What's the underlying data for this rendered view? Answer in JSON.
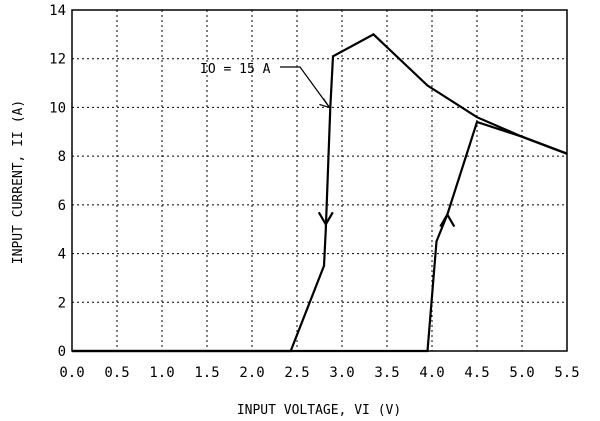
{
  "chart_data": {
    "type": "line",
    "title": "",
    "xlabel": "INPUT VOLTAGE, VI (V)",
    "ylabel": "INPUT CURRENT, II (A)",
    "xlim": [
      0,
      5.5
    ],
    "ylim": [
      0,
      14
    ],
    "x_ticks": [
      "0.0",
      "0.5",
      "1.0",
      "1.5",
      "2.0",
      "2.5",
      "3.0",
      "3.5",
      "4.0",
      "4.5",
      "5.0",
      "5.5"
    ],
    "y_ticks": [
      "0",
      "2",
      "4",
      "6",
      "8",
      "10",
      "12",
      "14"
    ],
    "grid": "dotted",
    "annotation": "IO = 15 A",
    "series": [
      {
        "values": [
          {
            "x": 0.0,
            "y": 0.0
          },
          {
            "x": 2.43,
            "y": 0.0
          },
          {
            "x": 2.8,
            "y": 3.5
          },
          {
            "x": 2.82,
            "y": 5.0
          },
          {
            "x": 2.87,
            "y": 10.0
          },
          {
            "x": 2.9,
            "y": 12.1
          },
          {
            "x": 3.35,
            "y": 13.0
          },
          {
            "x": 3.95,
            "y": 10.9
          },
          {
            "x": 4.5,
            "y": 9.6
          },
          {
            "x": 5.0,
            "y": 8.8
          },
          {
            "x": 5.5,
            "y": 8.1
          }
        ]
      },
      {
        "values": [
          {
            "x": 0.0,
            "y": 0.0
          },
          {
            "x": 3.95,
            "y": 0.0
          },
          {
            "x": 4.05,
            "y": 4.5
          },
          {
            "x": 4.17,
            "y": 5.6
          },
          {
            "x": 4.5,
            "y": 9.4
          },
          {
            "x": 5.0,
            "y": 8.8
          },
          {
            "x": 5.5,
            "y": 8.1
          }
        ]
      }
    ]
  }
}
